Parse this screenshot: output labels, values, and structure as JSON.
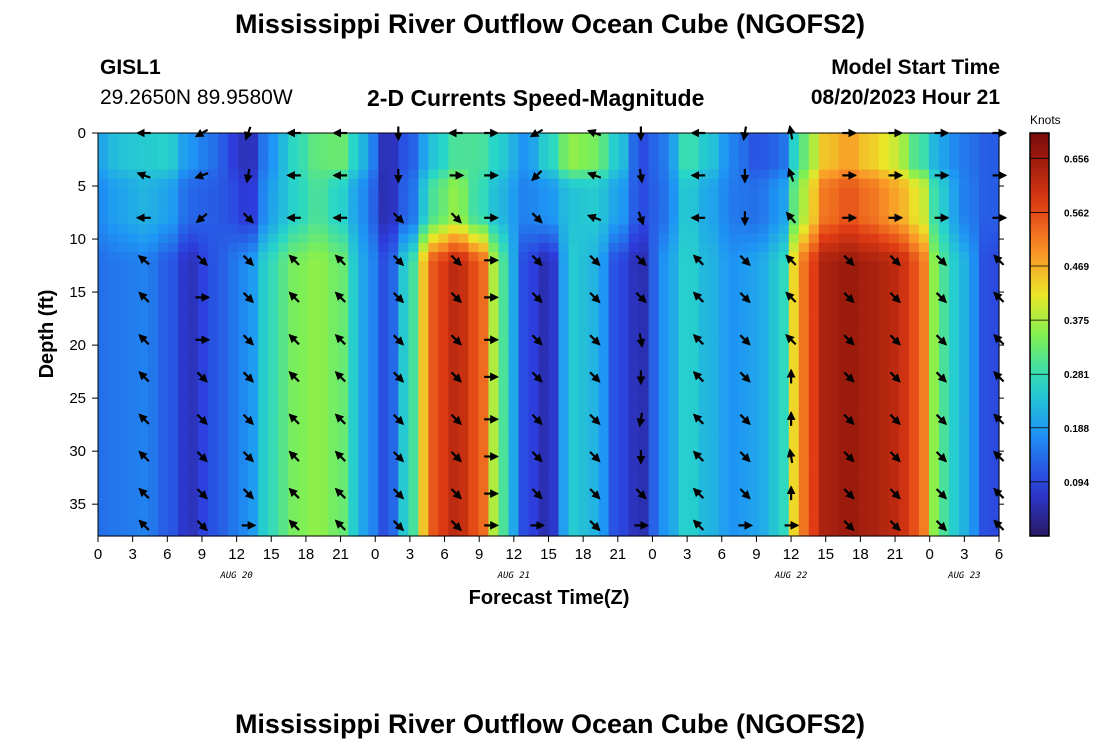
{
  "page": {
    "title_top": "Mississippi River Outflow Ocean Cube (NGOFS2)",
    "title_bottom": "Mississippi River Outflow Ocean Cube (NGOFS2)",
    "station_id": "GISL1",
    "coords": "29.2650N  89.9580W",
    "subtitle": "2-D Currents Speed-Magnitude",
    "model_start_label": "Model Start Time",
    "model_start_value": "08/20/2023 Hour 21"
  },
  "chart_data": {
    "type": "heatmap",
    "title": "2-D Currents Speed-Magnitude",
    "xlabel": "Forecast Time(Z)",
    "ylabel": "Depth (ft)",
    "xlim": [
      0,
      78
    ],
    "ylim": [
      0,
      38
    ],
    "x_tick_values": [
      0,
      3,
      6,
      9,
      12,
      15,
      18,
      21,
      24,
      27,
      30,
      33,
      36,
      39,
      42,
      45,
      48,
      51,
      54,
      57,
      60,
      63,
      66,
      69,
      72,
      75,
      78
    ],
    "x_tick_labels": [
      "0",
      "3",
      "6",
      "9",
      "12",
      "15",
      "18",
      "21",
      "0",
      "3",
      "6",
      "9",
      "12",
      "15",
      "18",
      "21",
      "0",
      "3",
      "6",
      "9",
      "12",
      "15",
      "18",
      "21",
      "0",
      "3",
      "6"
    ],
    "day_labels": [
      {
        "label": "AUG 20",
        "x": 12
      },
      {
        "label": "AUG 21",
        "x": 36
      },
      {
        "label": "AUG 22",
        "x": 60
      },
      {
        "label": "AUG 23",
        "x": 75
      }
    ],
    "y_tick_values": [
      0,
      5,
      10,
      15,
      20,
      25,
      30,
      35
    ],
    "y_tick_labels": [
      "0",
      "5",
      "10",
      "15",
      "20",
      "25",
      "30",
      "35"
    ],
    "colorbar": {
      "unit": "Knots",
      "min": 0.0,
      "max": 0.7,
      "tick_values": [
        0.094,
        0.188,
        0.281,
        0.375,
        0.469,
        0.562,
        0.656
      ],
      "tick_labels": [
        "0.094",
        "0.188",
        "0.281",
        "0.375",
        "0.469",
        "0.562",
        "0.656"
      ]
    },
    "field": {
      "description": "speed (knots) along time columns; each column = [surface-layer (0-3 ft), upper (4-9 ft), deep (11-38 ft)]",
      "columns": [
        {
          "t": 0,
          "s": [
            0.2,
            0.17,
            0.14
          ]
        },
        {
          "t": 2,
          "s": [
            0.24,
            0.2,
            0.15
          ]
        },
        {
          "t": 4,
          "s": [
            0.25,
            0.22,
            0.16
          ]
        },
        {
          "t": 6,
          "s": [
            0.26,
            0.2,
            0.12
          ]
        },
        {
          "t": 8,
          "s": [
            0.18,
            0.13,
            0.06
          ]
        },
        {
          "t": 10,
          "s": [
            0.14,
            0.12,
            0.11
          ]
        },
        {
          "t": 12,
          "s": [
            0.08,
            0.1,
            0.15
          ]
        },
        {
          "t": 13,
          "s": [
            0.05,
            0.07,
            0.18
          ]
        },
        {
          "t": 15,
          "s": [
            0.18,
            0.2,
            0.28
          ]
        },
        {
          "t": 17,
          "s": [
            0.27,
            0.26,
            0.34
          ]
        },
        {
          "t": 19,
          "s": [
            0.32,
            0.3,
            0.36
          ]
        },
        {
          "t": 21,
          "s": [
            0.33,
            0.26,
            0.33
          ]
        },
        {
          "t": 23,
          "s": [
            0.22,
            0.17,
            0.2
          ]
        },
        {
          "t": 25,
          "s": [
            0.05,
            0.05,
            0.1
          ]
        },
        {
          "t": 27,
          "s": [
            0.12,
            0.14,
            0.28
          ]
        },
        {
          "t": 29,
          "s": [
            0.24,
            0.3,
            0.55
          ]
        },
        {
          "t": 31,
          "s": [
            0.3,
            0.36,
            0.62
          ]
        },
        {
          "t": 33,
          "s": [
            0.3,
            0.28,
            0.55
          ]
        },
        {
          "t": 35,
          "s": [
            0.25,
            0.22,
            0.3
          ]
        },
        {
          "t": 37,
          "s": [
            0.18,
            0.16,
            0.1
          ]
        },
        {
          "t": 39,
          "s": [
            0.26,
            0.18,
            0.05
          ]
        },
        {
          "t": 41,
          "s": [
            0.36,
            0.24,
            0.25
          ]
        },
        {
          "t": 43,
          "s": [
            0.34,
            0.25,
            0.22
          ]
        },
        {
          "t": 45,
          "s": [
            0.25,
            0.2,
            0.1
          ]
        },
        {
          "t": 47,
          "s": [
            0.1,
            0.1,
            0.05
          ]
        },
        {
          "t": 49,
          "s": [
            0.15,
            0.14,
            0.18
          ]
        },
        {
          "t": 51,
          "s": [
            0.29,
            0.25,
            0.26
          ]
        },
        {
          "t": 53,
          "s": [
            0.24,
            0.2,
            0.22
          ]
        },
        {
          "t": 55,
          "s": [
            0.16,
            0.15,
            0.18
          ]
        },
        {
          "t": 57,
          "s": [
            0.11,
            0.14,
            0.2
          ]
        },
        {
          "t": 59,
          "s": [
            0.13,
            0.18,
            0.25
          ]
        },
        {
          "t": 61,
          "s": [
            0.32,
            0.38,
            0.52
          ]
        },
        {
          "t": 63,
          "s": [
            0.45,
            0.52,
            0.64
          ]
        },
        {
          "t": 65,
          "s": [
            0.48,
            0.55,
            0.66
          ]
        },
        {
          "t": 67,
          "s": [
            0.44,
            0.52,
            0.64
          ]
        },
        {
          "t": 69,
          "s": [
            0.4,
            0.48,
            0.62
          ]
        },
        {
          "t": 71,
          "s": [
            0.3,
            0.42,
            0.55
          ]
        },
        {
          "t": 73,
          "s": [
            0.2,
            0.25,
            0.3
          ]
        },
        {
          "t": 75,
          "s": [
            0.15,
            0.16,
            0.22
          ]
        },
        {
          "t": 77,
          "s": [
            0.12,
            0.12,
            0.1
          ]
        },
        {
          "t": 78,
          "s": [
            0.12,
            0.12,
            0.1
          ]
        }
      ]
    },
    "vectors": {
      "description": "current direction (degrees, screen angle, 0 = pointing right/east, positive = clockwise) at depth rows",
      "depths": [
        0,
        4,
        8,
        12,
        15.5,
        19.5,
        23,
        27,
        30.5,
        34,
        37
      ],
      "columns": [
        {
          "t": 4,
          "dirs": [
            180,
            200,
            180,
            220,
            225,
            225,
            225,
            225,
            225,
            225,
            225
          ]
        },
        {
          "t": 9,
          "dirs": [
            150,
            160,
            140,
            45,
            0,
            0,
            45,
            45,
            45,
            45,
            45
          ]
        },
        {
          "t": 13,
          "dirs": [
            110,
            100,
            45,
            45,
            45,
            45,
            45,
            45,
            45,
            45,
            0
          ]
        },
        {
          "t": 17,
          "dirs": [
            180,
            180,
            180,
            225,
            225,
            225,
            225,
            225,
            225,
            225,
            225
          ]
        },
        {
          "t": 21,
          "dirs": [
            180,
            180,
            180,
            225,
            225,
            225,
            225,
            225,
            225,
            225,
            225
          ]
        },
        {
          "t": 26,
          "dirs": [
            90,
            90,
            45,
            45,
            45,
            45,
            45,
            45,
            45,
            45,
            45
          ]
        },
        {
          "t": 31,
          "dirs": [
            180,
            0,
            45,
            45,
            45,
            45,
            45,
            45,
            45,
            45,
            45
          ]
        },
        {
          "t": 34,
          "dirs": [
            0,
            0,
            0,
            0,
            0,
            0,
            0,
            0,
            0,
            0,
            0
          ]
        },
        {
          "t": 38,
          "dirs": [
            150,
            135,
            45,
            45,
            45,
            45,
            45,
            45,
            45,
            45,
            0
          ]
        },
        {
          "t": 43,
          "dirs": [
            200,
            200,
            200,
            45,
            45,
            45,
            45,
            45,
            45,
            45,
            45
          ]
        },
        {
          "t": 47,
          "dirs": [
            90,
            80,
            70,
            45,
            45,
            80,
            90,
            100,
            90,
            45,
            0
          ]
        },
        {
          "t": 52,
          "dirs": [
            180,
            180,
            180,
            225,
            225,
            225,
            225,
            225,
            225,
            225,
            225
          ]
        },
        {
          "t": 56,
          "dirs": [
            100,
            90,
            90,
            45,
            45,
            45,
            45,
            45,
            45,
            45,
            0
          ]
        },
        {
          "t": 60,
          "dirs": [
            260,
            250,
            230,
            225,
            225,
            225,
            270,
            270,
            260,
            270,
            0
          ]
        },
        {
          "t": 65,
          "dirs": [
            0,
            0,
            0,
            45,
            45,
            45,
            45,
            45,
            45,
            45,
            45
          ]
        },
        {
          "t": 69,
          "dirs": [
            0,
            0,
            0,
            45,
            45,
            45,
            45,
            45,
            45,
            45,
            45
          ]
        },
        {
          "t": 73,
          "dirs": [
            0,
            0,
            0,
            45,
            45,
            45,
            45,
            45,
            45,
            45,
            45
          ]
        },
        {
          "t": 78,
          "dirs": [
            0,
            0,
            0,
            225,
            225,
            225,
            225,
            225,
            225,
            225,
            225
          ]
        }
      ]
    }
  }
}
